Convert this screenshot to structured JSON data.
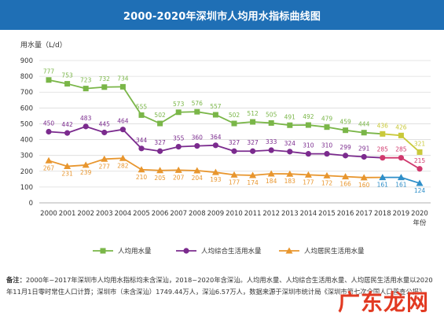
{
  "chart_data": {
    "type": "line",
    "title": "2000-2020年深圳市人均用水指标曲线图",
    "ylabel": "用水量（L/d）",
    "xlabel": "年份",
    "ylim": [
      0,
      900
    ],
    "yticks": [
      0,
      100,
      200,
      300,
      400,
      500,
      600,
      700,
      800,
      900
    ],
    "categories": [
      "2000",
      "2001",
      "2002",
      "2003",
      "2004",
      "2005",
      "2006",
      "2007",
      "2008",
      "2009",
      "2010",
      "2011",
      "2012",
      "2013",
      "2014",
      "2015",
      "2016",
      "2017",
      "2018",
      "2019",
      "2020"
    ],
    "series": [
      {
        "name": "人均用水量",
        "color": "#7ab648",
        "highlight_color": "#c9c93a",
        "marker": "square",
        "values": [
          777,
          753,
          723,
          732,
          734,
          555,
          502,
          573,
          576,
          557,
          502,
          512,
          505,
          491,
          492,
          479,
          459,
          444,
          436,
          426,
          321
        ]
      },
      {
        "name": "人均综合生活用水量",
        "color": "#7b2b8e",
        "highlight_color": "#d0386d",
        "marker": "circle",
        "values": [
          450,
          442,
          483,
          445,
          464,
          344,
          327,
          355,
          360,
          364,
          327,
          327,
          333,
          324,
          310,
          310,
          299,
          291,
          285,
          285,
          215
        ]
      },
      {
        "name": "人均居民生活用水量",
        "color": "#e8962e",
        "highlight_color": "#2f8fc9",
        "marker": "triangle",
        "values": [
          267,
          231,
          239,
          277,
          282,
          210,
          205,
          207,
          204,
          193,
          177,
          174,
          184,
          183,
          177,
          172,
          166,
          160,
          161,
          161,
          124
        ]
      }
    ],
    "highlight_from": "2018",
    "grid": "horizontal",
    "legend": "bottom"
  },
  "note": {
    "label": "备注：",
    "text": "2000年~2017年深圳市人均用水指标均未含深汕，2018~2020年含深汕。人均用水量、人均综合生活用水量、人均居民生活用水量以2020年11月1日零时常住人口计算；深圳市（未含深汕）1749.44万人，深汕6.57万人，数据来源于深圳市统计局《深圳市第七次全国人口普查公报》。"
  },
  "watermark": "广东龙网"
}
